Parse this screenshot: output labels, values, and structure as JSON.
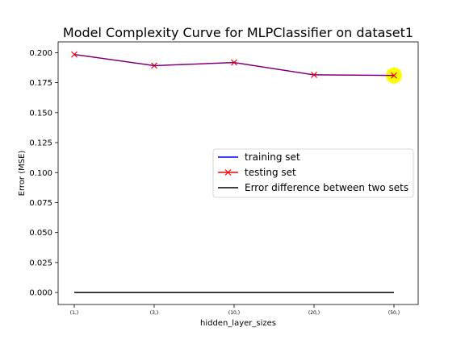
{
  "chart_data": {
    "type": "line",
    "title": "Model Complexity Curve for MLPClassifier on dataset1",
    "xlabel": "hidden_layer_sizes",
    "ylabel": "Error (MSE)",
    "categories": [
      "(1,)",
      "(3,)",
      "(10,)",
      "(20,)",
      "(50,)"
    ],
    "ylim": [
      -0.01,
      0.209
    ],
    "yticks": [
      0.0,
      0.025,
      0.05,
      0.075,
      0.1,
      0.125,
      0.15,
      0.175,
      0.2
    ],
    "ytick_labels": [
      "0.000",
      "0.025",
      "0.050",
      "0.075",
      "0.100",
      "0.125",
      "0.150",
      "0.175",
      "0.200"
    ],
    "series": [
      {
        "name": "training set",
        "values": [
          0.1985,
          0.1892,
          0.1918,
          0.1815,
          0.181
        ],
        "color": "#0000ff",
        "marker": "none"
      },
      {
        "name": "testing set",
        "values": [
          0.1985,
          0.1892,
          0.1918,
          0.1815,
          0.181
        ],
        "color": "#ff0000",
        "marker": "x"
      },
      {
        "name": "Error difference between two sets",
        "values": [
          0.0,
          0.0,
          0.0,
          0.0,
          0.0
        ],
        "color": "#000000",
        "marker": "none"
      }
    ],
    "highlight": {
      "category": "(50,)",
      "value": 0.181,
      "color": "#ffff00"
    },
    "grid": false,
    "legend_position": "center-right"
  }
}
